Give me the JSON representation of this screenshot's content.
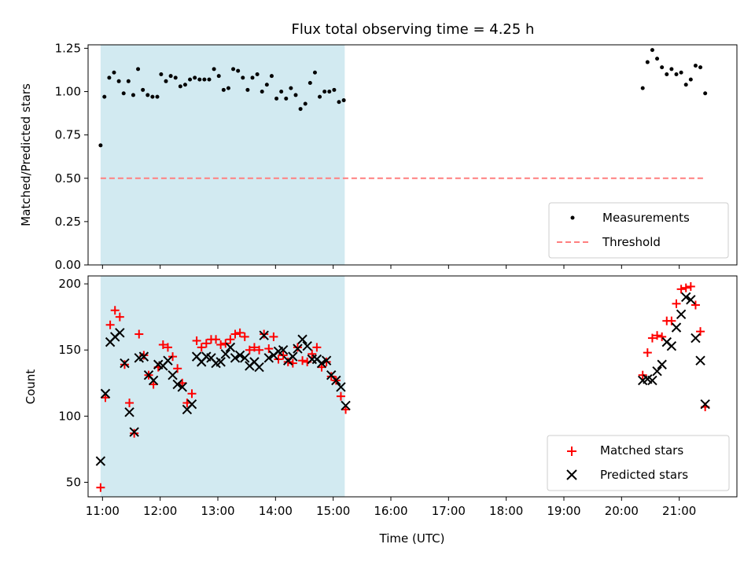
{
  "chart_data": [
    {
      "type": "scatter",
      "title": "Flux total observing time = 4.25 h",
      "ylabel": "Matched/Predicted stars",
      "xlabel": "",
      "ylim": [
        0,
        1.27
      ],
      "xlim": [
        "10:45",
        "22:00"
      ],
      "yticks": [
        0.0,
        0.25,
        0.5,
        0.75,
        1.0,
        1.25
      ],
      "ytick_labels": [
        "0.00",
        "0.25",
        "0.50",
        "0.75",
        "1.00",
        "1.25"
      ],
      "shaded_region": {
        "from": "10:58",
        "to": "15:12",
        "color": "#add8e6"
      },
      "legend": {
        "placement": "lower-right",
        "entries": [
          "Measurements",
          "Threshold"
        ]
      },
      "series": [
        {
          "name": "Measurements",
          "color": "#000000",
          "points": [
            [
              "10:58",
              0.69
            ],
            [
              "11:02",
              0.97
            ],
            [
              "11:07",
              1.08
            ],
            [
              "11:12",
              1.11
            ],
            [
              "11:17",
              1.06
            ],
            [
              "11:22",
              0.99
            ],
            [
              "11:27",
              1.06
            ],
            [
              "11:32",
              0.98
            ],
            [
              "11:37",
              1.13
            ],
            [
              "11:42",
              1.01
            ],
            [
              "11:47",
              0.98
            ],
            [
              "11:52",
              0.97
            ],
            [
              "11:57",
              0.97
            ],
            [
              "12:01",
              1.1
            ],
            [
              "12:06",
              1.06
            ],
            [
              "12:11",
              1.09
            ],
            [
              "12:16",
              1.08
            ],
            [
              "12:21",
              1.03
            ],
            [
              "12:26",
              1.04
            ],
            [
              "12:31",
              1.07
            ],
            [
              "12:36",
              1.08
            ],
            [
              "12:41",
              1.07
            ],
            [
              "12:46",
              1.07
            ],
            [
              "12:51",
              1.07
            ],
            [
              "12:56",
              1.13
            ],
            [
              "13:01",
              1.09
            ],
            [
              "13:06",
              1.01
            ],
            [
              "13:11",
              1.02
            ],
            [
              "13:16",
              1.13
            ],
            [
              "13:21",
              1.12
            ],
            [
              "13:26",
              1.08
            ],
            [
              "13:31",
              1.01
            ],
            [
              "13:36",
              1.08
            ],
            [
              "13:41",
              1.1
            ],
            [
              "13:46",
              1.0
            ],
            [
              "13:51",
              1.04
            ],
            [
              "13:56",
              1.09
            ],
            [
              "14:01",
              0.96
            ],
            [
              "14:06",
              1.0
            ],
            [
              "14:11",
              0.96
            ],
            [
              "14:16",
              1.02
            ],
            [
              "14:21",
              0.98
            ],
            [
              "14:26",
              0.9
            ],
            [
              "14:31",
              0.93
            ],
            [
              "14:36",
              1.05
            ],
            [
              "14:41",
              1.11
            ],
            [
              "14:46",
              0.97
            ],
            [
              "14:51",
              1.0
            ],
            [
              "14:56",
              1.0
            ],
            [
              "15:01",
              1.01
            ],
            [
              "15:06",
              0.94
            ],
            [
              "15:11",
              0.95
            ],
            [
              "20:22",
              1.02
            ],
            [
              "20:27",
              1.17
            ],
            [
              "20:32",
              1.24
            ],
            [
              "20:37",
              1.19
            ],
            [
              "20:42",
              1.14
            ],
            [
              "20:47",
              1.1
            ],
            [
              "20:52",
              1.13
            ],
            [
              "20:57",
              1.1
            ],
            [
              "21:02",
              1.11
            ],
            [
              "21:07",
              1.04
            ],
            [
              "21:12",
              1.07
            ],
            [
              "21:17",
              1.15
            ],
            [
              "21:22",
              1.14
            ],
            [
              "21:27",
              0.99
            ]
          ]
        },
        {
          "name": "Threshold",
          "color": "#ff7f7f",
          "style": "dashed",
          "points": [
            [
              "10:58",
              0.5
            ],
            [
              "21:27",
              0.5
            ]
          ]
        }
      ]
    },
    {
      "type": "scatter",
      "title": "",
      "ylabel": "Count",
      "xlabel": "Time (UTC)",
      "ylim": [
        39,
        206
      ],
      "xlim": [
        "10:45",
        "22:00"
      ],
      "yticks": [
        50,
        100,
        150,
        200
      ],
      "ytick_labels": [
        "50",
        "100",
        "150",
        "200"
      ],
      "xtick_labels": [
        "11:00",
        "12:00",
        "13:00",
        "14:00",
        "15:00",
        "16:00",
        "17:00",
        "18:00",
        "19:00",
        "20:00",
        "21:00"
      ],
      "shaded_region": {
        "from": "10:58",
        "to": "15:12",
        "color": "#add8e6"
      },
      "legend": {
        "placement": "lower-right",
        "entries": [
          "Matched stars",
          "Predicted stars"
        ]
      },
      "series": [
        {
          "name": "Matched stars",
          "color": "#ff0000",
          "marker": "plus",
          "points": [
            [
              "10:58",
              46
            ],
            [
              "11:03",
              114
            ],
            [
              "11:08",
              169
            ],
            [
              "11:13",
              180
            ],
            [
              "11:18",
              175
            ],
            [
              "11:23",
              139
            ],
            [
              "11:28",
              110
            ],
            [
              "11:33",
              87
            ],
            [
              "11:38",
              162
            ],
            [
              "11:43",
              146
            ],
            [
              "11:48",
              131
            ],
            [
              "11:53",
              124
            ],
            [
              "11:58",
              137
            ],
            [
              "12:03",
              154
            ],
            [
              "12:08",
              152
            ],
            [
              "12:13",
              145
            ],
            [
              "12:18",
              136
            ],
            [
              "12:23",
              125
            ],
            [
              "12:28",
              110
            ],
            [
              "12:33",
              117
            ],
            [
              "12:38",
              157
            ],
            [
              "12:43",
              152
            ],
            [
              "12:48",
              155
            ],
            [
              "12:53",
              158
            ],
            [
              "12:58",
              158
            ],
            [
              "13:03",
              154
            ],
            [
              "13:08",
              155
            ],
            [
              "13:13",
              158
            ],
            [
              "13:18",
              162
            ],
            [
              "13:23",
              163
            ],
            [
              "13:28",
              160
            ],
            [
              "13:33",
              150
            ],
            [
              "13:38",
              152
            ],
            [
              "13:43",
              150
            ],
            [
              "13:48",
              162
            ],
            [
              "13:53",
              151
            ],
            [
              "13:58",
              160
            ],
            [
              "14:03",
              143
            ],
            [
              "14:08",
              146
            ],
            [
              "14:13",
              141
            ],
            [
              "14:18",
              140
            ],
            [
              "14:23",
              152
            ],
            [
              "14:28",
              142
            ],
            [
              "14:33",
              141
            ],
            [
              "14:38",
              147
            ],
            [
              "14:43",
              152
            ],
            [
              "14:48",
              137
            ],
            [
              "14:53",
              141
            ],
            [
              "14:58",
              130
            ],
            [
              "15:03",
              127
            ],
            [
              "15:08",
              115
            ],
            [
              "15:13",
              105
            ],
            [
              "20:22",
              131
            ],
            [
              "20:27",
              148
            ],
            [
              "20:32",
              159
            ],
            [
              "20:37",
              161
            ],
            [
              "20:42",
              160
            ],
            [
              "20:47",
              172
            ],
            [
              "20:52",
              172
            ],
            [
              "20:57",
              185
            ],
            [
              "21:02",
              196
            ],
            [
              "21:07",
              197
            ],
            [
              "21:12",
              198
            ],
            [
              "21:17",
              184
            ],
            [
              "21:22",
              164
            ],
            [
              "21:27",
              107
            ]
          ]
        },
        {
          "name": "Predicted stars",
          "color": "#000000",
          "marker": "x",
          "points": [
            [
              "10:58",
              66
            ],
            [
              "11:03",
              117
            ],
            [
              "11:08",
              156
            ],
            [
              "11:13",
              160
            ],
            [
              "11:18",
              163
            ],
            [
              "11:23",
              140
            ],
            [
              "11:28",
              103
            ],
            [
              "11:33",
              88
            ],
            [
              "11:38",
              144
            ],
            [
              "11:43",
              145
            ],
            [
              "11:48",
              131
            ],
            [
              "11:53",
              127
            ],
            [
              "11:58",
              139
            ],
            [
              "12:03",
              138
            ],
            [
              "12:08",
              142
            ],
            [
              "12:13",
              131
            ],
            [
              "12:18",
              124
            ],
            [
              "12:23",
              122
            ],
            [
              "12:28",
              105
            ],
            [
              "12:33",
              109
            ],
            [
              "12:38",
              145
            ],
            [
              "12:43",
              141
            ],
            [
              "12:48",
              145
            ],
            [
              "12:53",
              144
            ],
            [
              "12:58",
              140
            ],
            [
              "13:03",
              141
            ],
            [
              "13:08",
              147
            ],
            [
              "13:13",
              152
            ],
            [
              "13:18",
              144
            ],
            [
              "13:23",
              146
            ],
            [
              "13:28",
              144
            ],
            [
              "13:33",
              138
            ],
            [
              "13:38",
              141
            ],
            [
              "13:43",
              137
            ],
            [
              "13:48",
              161
            ],
            [
              "13:53",
              144
            ],
            [
              "13:58",
              146
            ],
            [
              "14:03",
              149
            ],
            [
              "14:08",
              150
            ],
            [
              "14:13",
              142
            ],
            [
              "14:18",
              145
            ],
            [
              "14:23",
              151
            ],
            [
              "14:28",
              158
            ],
            [
              "14:33",
              153
            ],
            [
              "14:38",
              143
            ],
            [
              "14:43",
              143
            ],
            [
              "14:48",
              140
            ],
            [
              "14:53",
              142
            ],
            [
              "14:58",
              131
            ],
            [
              "15:03",
              127
            ],
            [
              "15:08",
              122
            ],
            [
              "15:13",
              108
            ],
            [
              "20:22",
              127
            ],
            [
              "20:27",
              128
            ],
            [
              "20:32",
              127
            ],
            [
              "20:37",
              134
            ],
            [
              "20:42",
              139
            ],
            [
              "20:47",
              156
            ],
            [
              "20:52",
              153
            ],
            [
              "20:57",
              167
            ],
            [
              "21:02",
              177
            ],
            [
              "21:07",
              190
            ],
            [
              "21:12",
              188
            ],
            [
              "21:17",
              159
            ],
            [
              "21:22",
              142
            ],
            [
              "21:27",
              109
            ]
          ]
        }
      ]
    }
  ]
}
